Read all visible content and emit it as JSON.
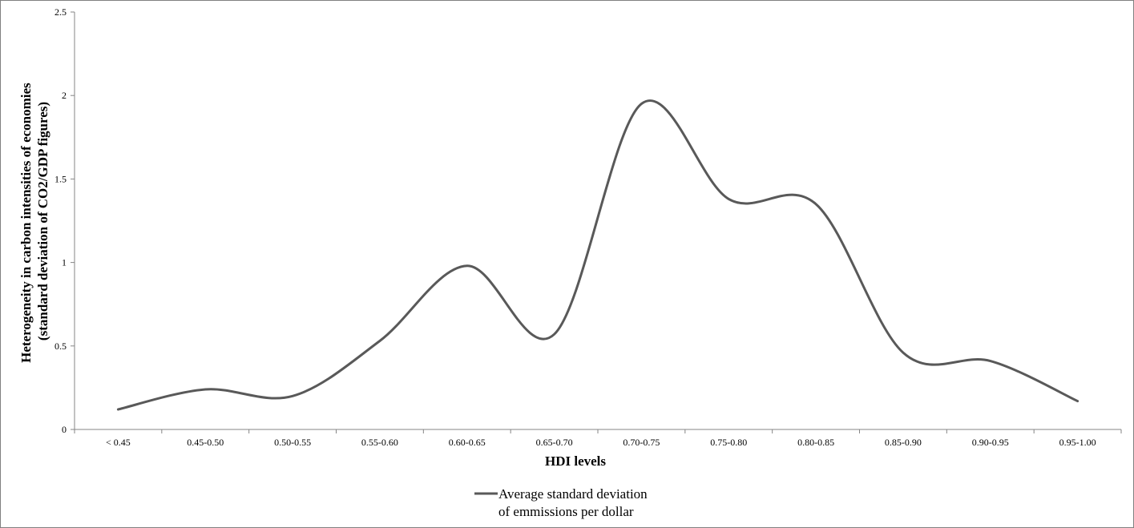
{
  "chart_data": {
    "type": "line",
    "title": "",
    "xlabel": "HDI levels",
    "ylabel_lines": [
      "Heterogeneity in carbon intensities of economies",
      "(standard deviation of CO2/GDP figures)"
    ],
    "categories": [
      "< 0.45",
      "0.45-0.50",
      "0.50-0.55",
      "0.55-0.60",
      "0.60-0.65",
      "0.65-0.70",
      "0.70-0.75",
      "0.75-0.80",
      "0.80-0.85",
      "0.85-0.90",
      "0.90-0.95",
      "0.95-1.00"
    ],
    "ylim": [
      0,
      2.5
    ],
    "yticks": [
      "0",
      "0.5",
      "1",
      "1.5",
      "2",
      "2.5"
    ],
    "series": [
      {
        "name": "Average standard deviation of emmissions per dollar",
        "legend_lines": [
          "Average standard deviation",
          "of emmissions per dollar"
        ],
        "values": [
          0.12,
          0.24,
          0.2,
          0.53,
          0.98,
          0.57,
          1.95,
          1.38,
          1.35,
          0.46,
          0.41,
          0.17
        ],
        "color": "#595959"
      }
    ],
    "grid": false,
    "legend_position": "bottom"
  }
}
